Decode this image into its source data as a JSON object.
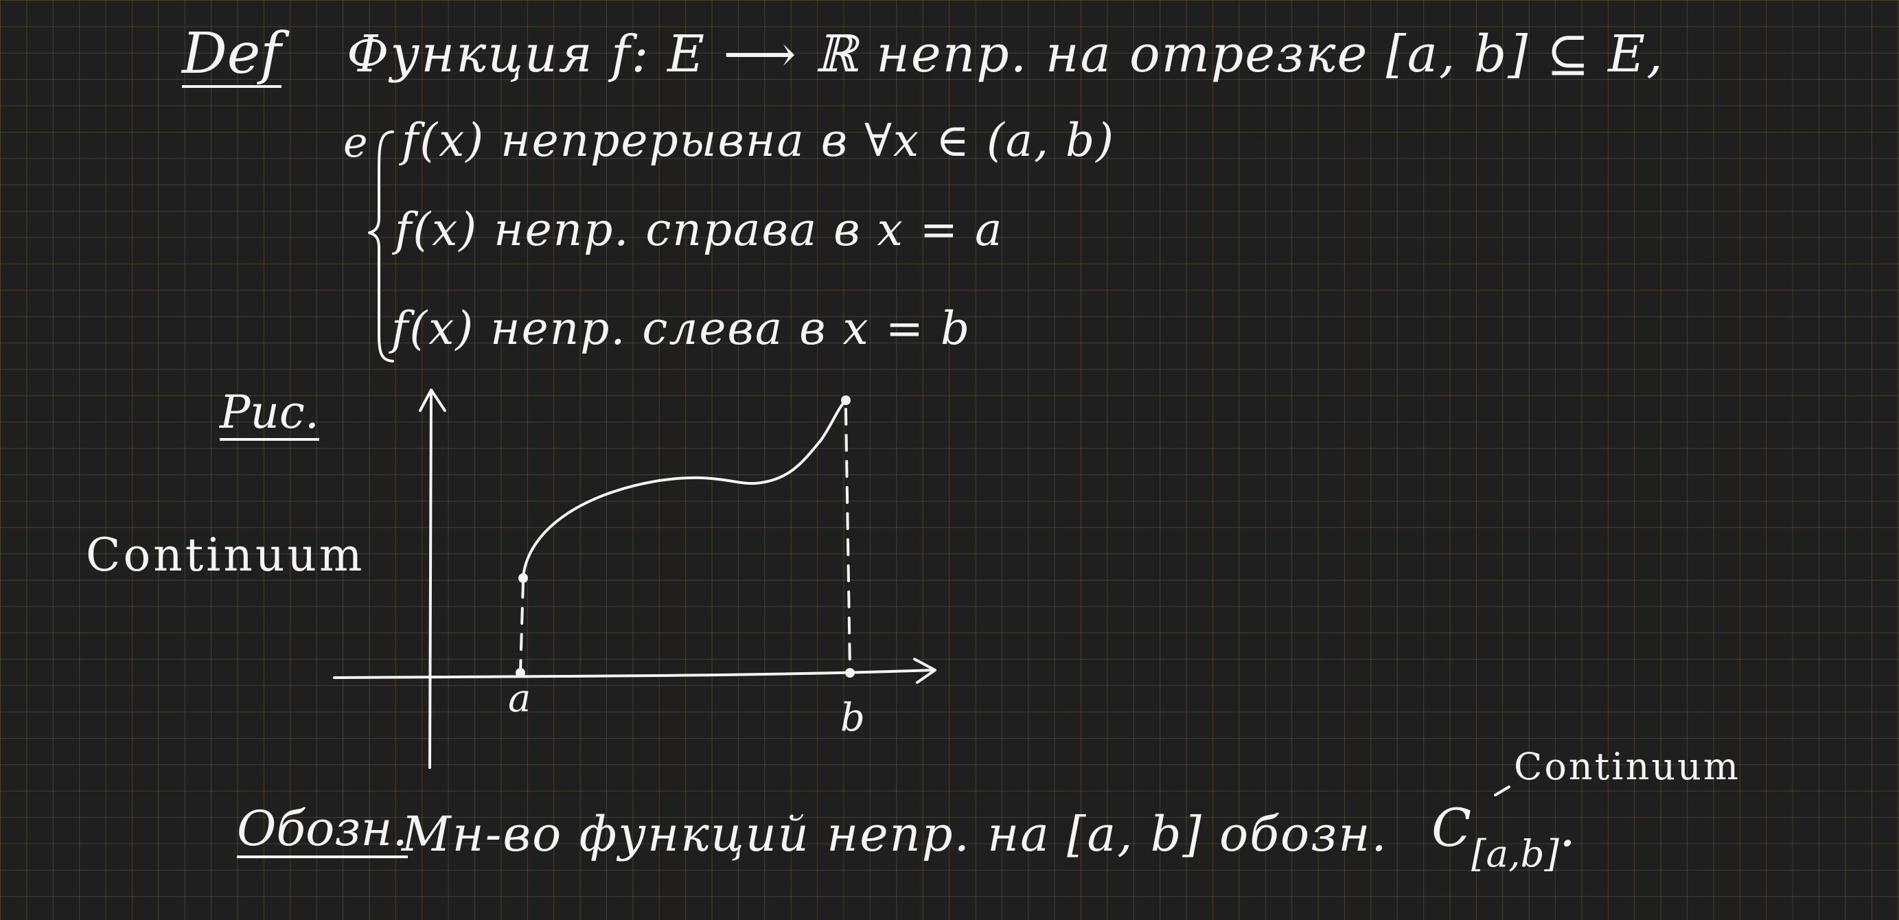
{
  "definition": {
    "tag": "Def",
    "statement": "Функция f: E ⟶ ℝ непр. на отрезке [a, b] ⊆ E,",
    "iff_prefix": "e",
    "conditions": [
      "f(x) непрерывна в ∀x ∈ (a, b)",
      "f(x) непр. справа в x = a",
      "f(x) непр. слева в x = b"
    ]
  },
  "figure": {
    "tag": "Рис.",
    "side_label": "Continuum",
    "point_a": "a",
    "point_b": "b"
  },
  "notation": {
    "tag": "Обозн.",
    "text": "Мн-во функций непр. на [a, b] обозн.",
    "symbol": "C",
    "subscript": "[a,b]",
    "end": "."
  },
  "annotation": {
    "label": "Continuum"
  }
}
